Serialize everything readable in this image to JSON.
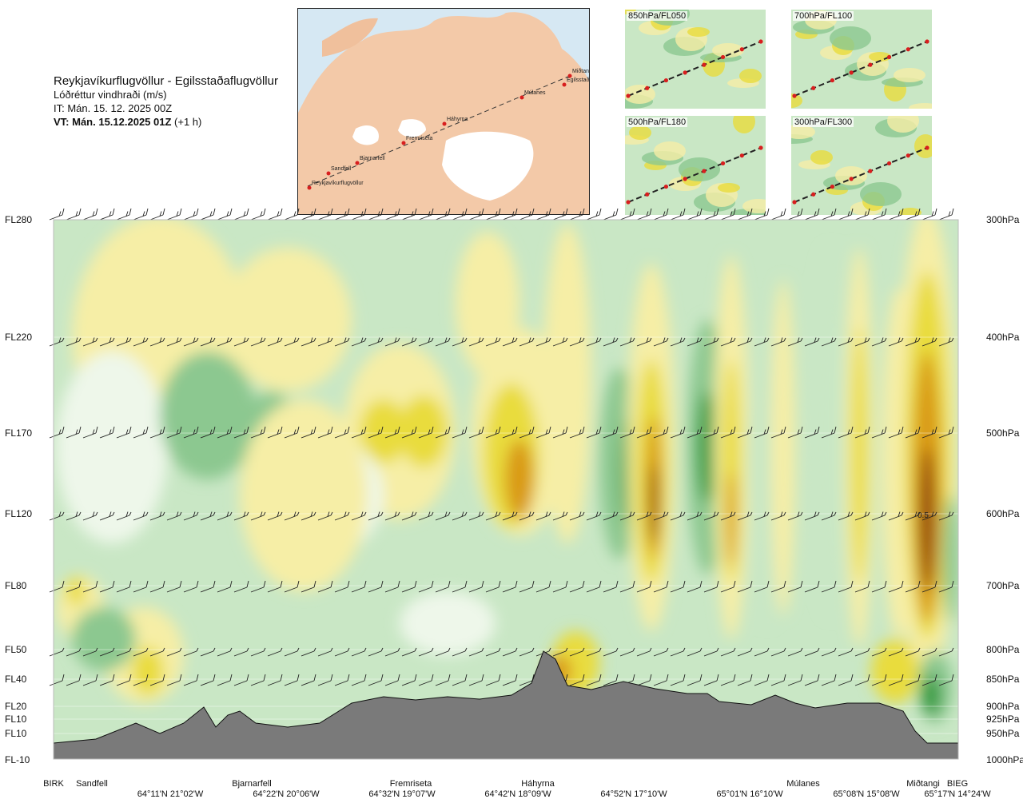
{
  "header": {
    "route": "Reykjavíkurflugvöllur - Egilsstaðaflugvöllur",
    "variable": "Lóðréttur vindhraði (m/s)",
    "issue_time": "IT: Mán. 15. 12. 2025 00Z",
    "valid_label": "VT: Mán. 15.12.2025 01Z",
    "valid_offset": "(+1 h)"
  },
  "route_map": {
    "waypoints": [
      "Reykjavíkurflugvöllur",
      "Sandfell",
      "Bjarnarfell",
      "Fremriseta",
      "Háhyrna",
      "Múlanes",
      "Egilsstaðir",
      "Miðtangi"
    ],
    "colors": {
      "land": "#f3c9a8",
      "sea": "#d6e8f3",
      "ice": "#ffffff",
      "route": "#333333",
      "waypoint": "#d81e1e"
    }
  },
  "level_maps": [
    {
      "label": "850hPa/FL050"
    },
    {
      "label": "700hPa/FL100"
    },
    {
      "label": "500hPa/FL180"
    },
    {
      "label": "300hPa/FL300"
    }
  ],
  "chart_data": {
    "type": "heatmap",
    "title": "Lóðréttur vindhraði (m/s)",
    "y_left_labels": [
      "FL280",
      "FL220",
      "FL170",
      "FL120",
      "FL80",
      "FL50",
      "FL40",
      "FL20",
      "FL10",
      "FL10",
      "FL-10"
    ],
    "y_right_labels": [
      "300hPa",
      "400hPa",
      "500hPa",
      "600hPa",
      "700hPa",
      "800hPa",
      "850hPa",
      "900hPa",
      "925hPa",
      "950hPa",
      "1000hPa"
    ],
    "y_pressure_hPa": [
      300,
      400,
      500,
      600,
      700,
      800,
      850,
      900,
      925,
      950,
      1000
    ],
    "x_waypoints": [
      "BIRK",
      "Sandfell",
      "Bjarnarfell",
      "Fremriseta",
      "Háhyrna",
      "Múlanes",
      "Miðtangi",
      "BIEG"
    ],
    "x_coordinates": [
      "64°11'N 21°02'W",
      "64°22'N 20°06'W",
      "64°32'N 19°07'W",
      "64°42'N 18°09'W",
      "64°52'N 17°10'W",
      "65°01'N 16°10'W",
      "65°08'N 15°08'W",
      "65°17'N 14°24'W"
    ],
    "annotation": "0.5",
    "palette": {
      "down_strong": "#2e9a3a",
      "down_medium": "#8cc890",
      "down_weak": "#c9e7c5",
      "neutral": "#eef7ea",
      "up_weak": "#f6eea6",
      "up_medium": "#e9dc3c",
      "up_strong": "#d99a12",
      "up_max": "#8a3a10",
      "terrain": "#7a7a7a"
    }
  }
}
